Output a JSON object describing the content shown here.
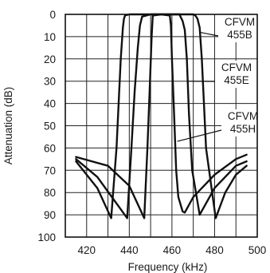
{
  "chart_data": {
    "type": "line",
    "xlabel": "Frequency (kHz)",
    "ylabel": "Attenuation (dB)",
    "xlim": [
      410,
      500
    ],
    "ylim": [
      0,
      100
    ],
    "y_inverted": true,
    "x_ticks": [
      "420",
      "440",
      "460",
      "480",
      "500"
    ],
    "y_ticks": [
      "0",
      "10",
      "20",
      "30",
      "40",
      "50",
      "60",
      "70",
      "80",
      "90",
      "100"
    ],
    "x_grid": [
      410,
      420,
      430,
      440,
      450,
      460,
      470,
      480,
      490,
      500
    ],
    "y_grid": [
      0,
      10,
      20,
      30,
      40,
      50,
      60,
      70,
      80,
      90,
      100
    ],
    "grid": true,
    "series": [
      {
        "name": "CFVM 455B",
        "label_lines": [
          "CFVM",
          "455B"
        ],
        "x": [
          415,
          425,
          431.5,
          434,
          436,
          437,
          437.5,
          438,
          440,
          445,
          450,
          455,
          460,
          465,
          470,
          471,
          472,
          473,
          474,
          476,
          480.5,
          485,
          490,
          495
        ],
        "y": [
          66,
          78,
          91.5,
          60,
          20,
          6,
          2,
          0.5,
          0,
          0,
          0,
          0,
          0,
          0,
          0,
          0.5,
          2,
          6,
          20,
          60,
          91.5,
          80,
          72,
          68
        ]
      },
      {
        "name": "CFVM 455E",
        "label_lines": [
          "CFVM",
          "455E"
        ],
        "x": [
          415,
          425,
          439,
          441,
          442.5,
          444,
          445,
          446,
          450,
          455,
          460,
          463.5,
          464,
          465,
          466,
          467,
          468,
          469.5,
          473,
          480,
          490,
          495
        ],
        "y": [
          65,
          73,
          91.5,
          60,
          35,
          15,
          5,
          1,
          0,
          0,
          0,
          0,
          1,
          3,
          7,
          20,
          45,
          70,
          90,
          78,
          68,
          66
        ]
      },
      {
        "name": "CFVM 455H",
        "label_lines": [
          "CFVM",
          "455H"
        ],
        "x": [
          415,
          430,
          440,
          447,
          448.5,
          449.5,
          450.5,
          451,
          455,
          459,
          459.5,
          460,
          461,
          462,
          463,
          465,
          466,
          470,
          480,
          490,
          495
        ],
        "y": [
          64,
          68,
          77,
          91.5,
          60,
          35,
          10,
          0.5,
          0,
          0.5,
          5,
          20,
          45,
          70,
          82,
          88.5,
          89,
          82,
          72,
          65,
          63
        ]
      }
    ],
    "annotations": [
      {
        "series": "CFVM 455B",
        "text_lines": [
          "CFVM",
          "455B"
        ],
        "anchor": "right",
        "leader_to": [
          472.8,
          8
        ]
      },
      {
        "series": "CFVM 455E",
        "text_lines": [
          "CFVM",
          "455E"
        ],
        "anchor": "right",
        "leader_to": [
          467.5,
          30
        ]
      },
      {
        "series": "CFVM 455H",
        "text_lines": [
          "CFVM",
          "455H"
        ],
        "anchor": "right",
        "leader_to": [
          462.5,
          57
        ]
      }
    ]
  }
}
